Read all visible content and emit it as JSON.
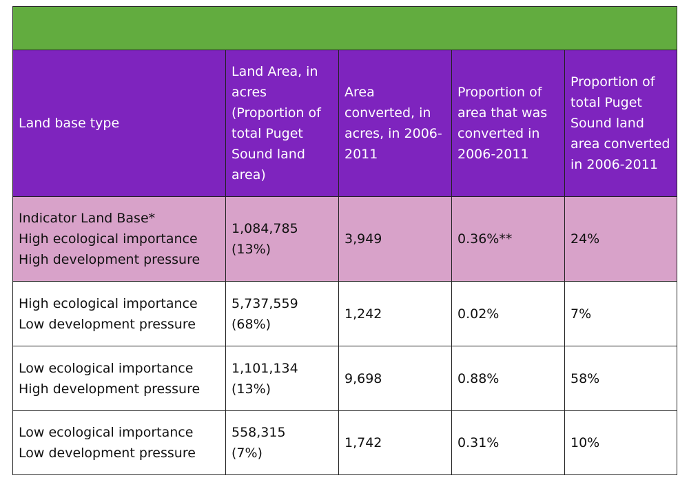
{
  "table": {
    "headers": [
      "Land base type",
      "Land Area, in acres (Proportion of total Puget Sound land area)",
      "Area converted, in acres, in 2006-2011",
      "Proportion of area that was converted in 2006-2011",
      "Proportion of total Puget Sound land area converted in 2006-2011"
    ],
    "rows": [
      {
        "land_type_lines": [
          "Indicator Land Base*",
          "High ecological importance",
          "High development pressure"
        ],
        "land_area_lines": [
          "1,084,785",
          "(13%)"
        ],
        "area_converted": "3,949",
        "proportion_converted": "0.36%**",
        "proportion_total": "24%"
      },
      {
        "land_type_lines": [
          "High ecological importance",
          "Low development pressure"
        ],
        "land_area_lines": [
          "5,737,559",
          "(68%)"
        ],
        "area_converted": "1,242",
        "proportion_converted": "0.02%",
        "proportion_total": "7%"
      },
      {
        "land_type_lines": [
          "Low ecological importance",
          "High development pressure"
        ],
        "land_area_lines": [
          "1,101,134",
          "(13%)"
        ],
        "area_converted": "9,698",
        "proportion_converted": "0.88%",
        "proportion_total": "58%"
      },
      {
        "land_type_lines": [
          "Low ecological importance",
          "Low development pressure"
        ],
        "land_area_lines": [
          "558,315",
          "(7%)"
        ],
        "area_converted": "1,742",
        "proportion_converted": "0.31%",
        "proportion_total": "10%"
      }
    ]
  },
  "colors": {
    "title_bar": "#62ac3f",
    "header_bg": "#7e24be",
    "highlight_row_bg": "#d8a2c9"
  }
}
